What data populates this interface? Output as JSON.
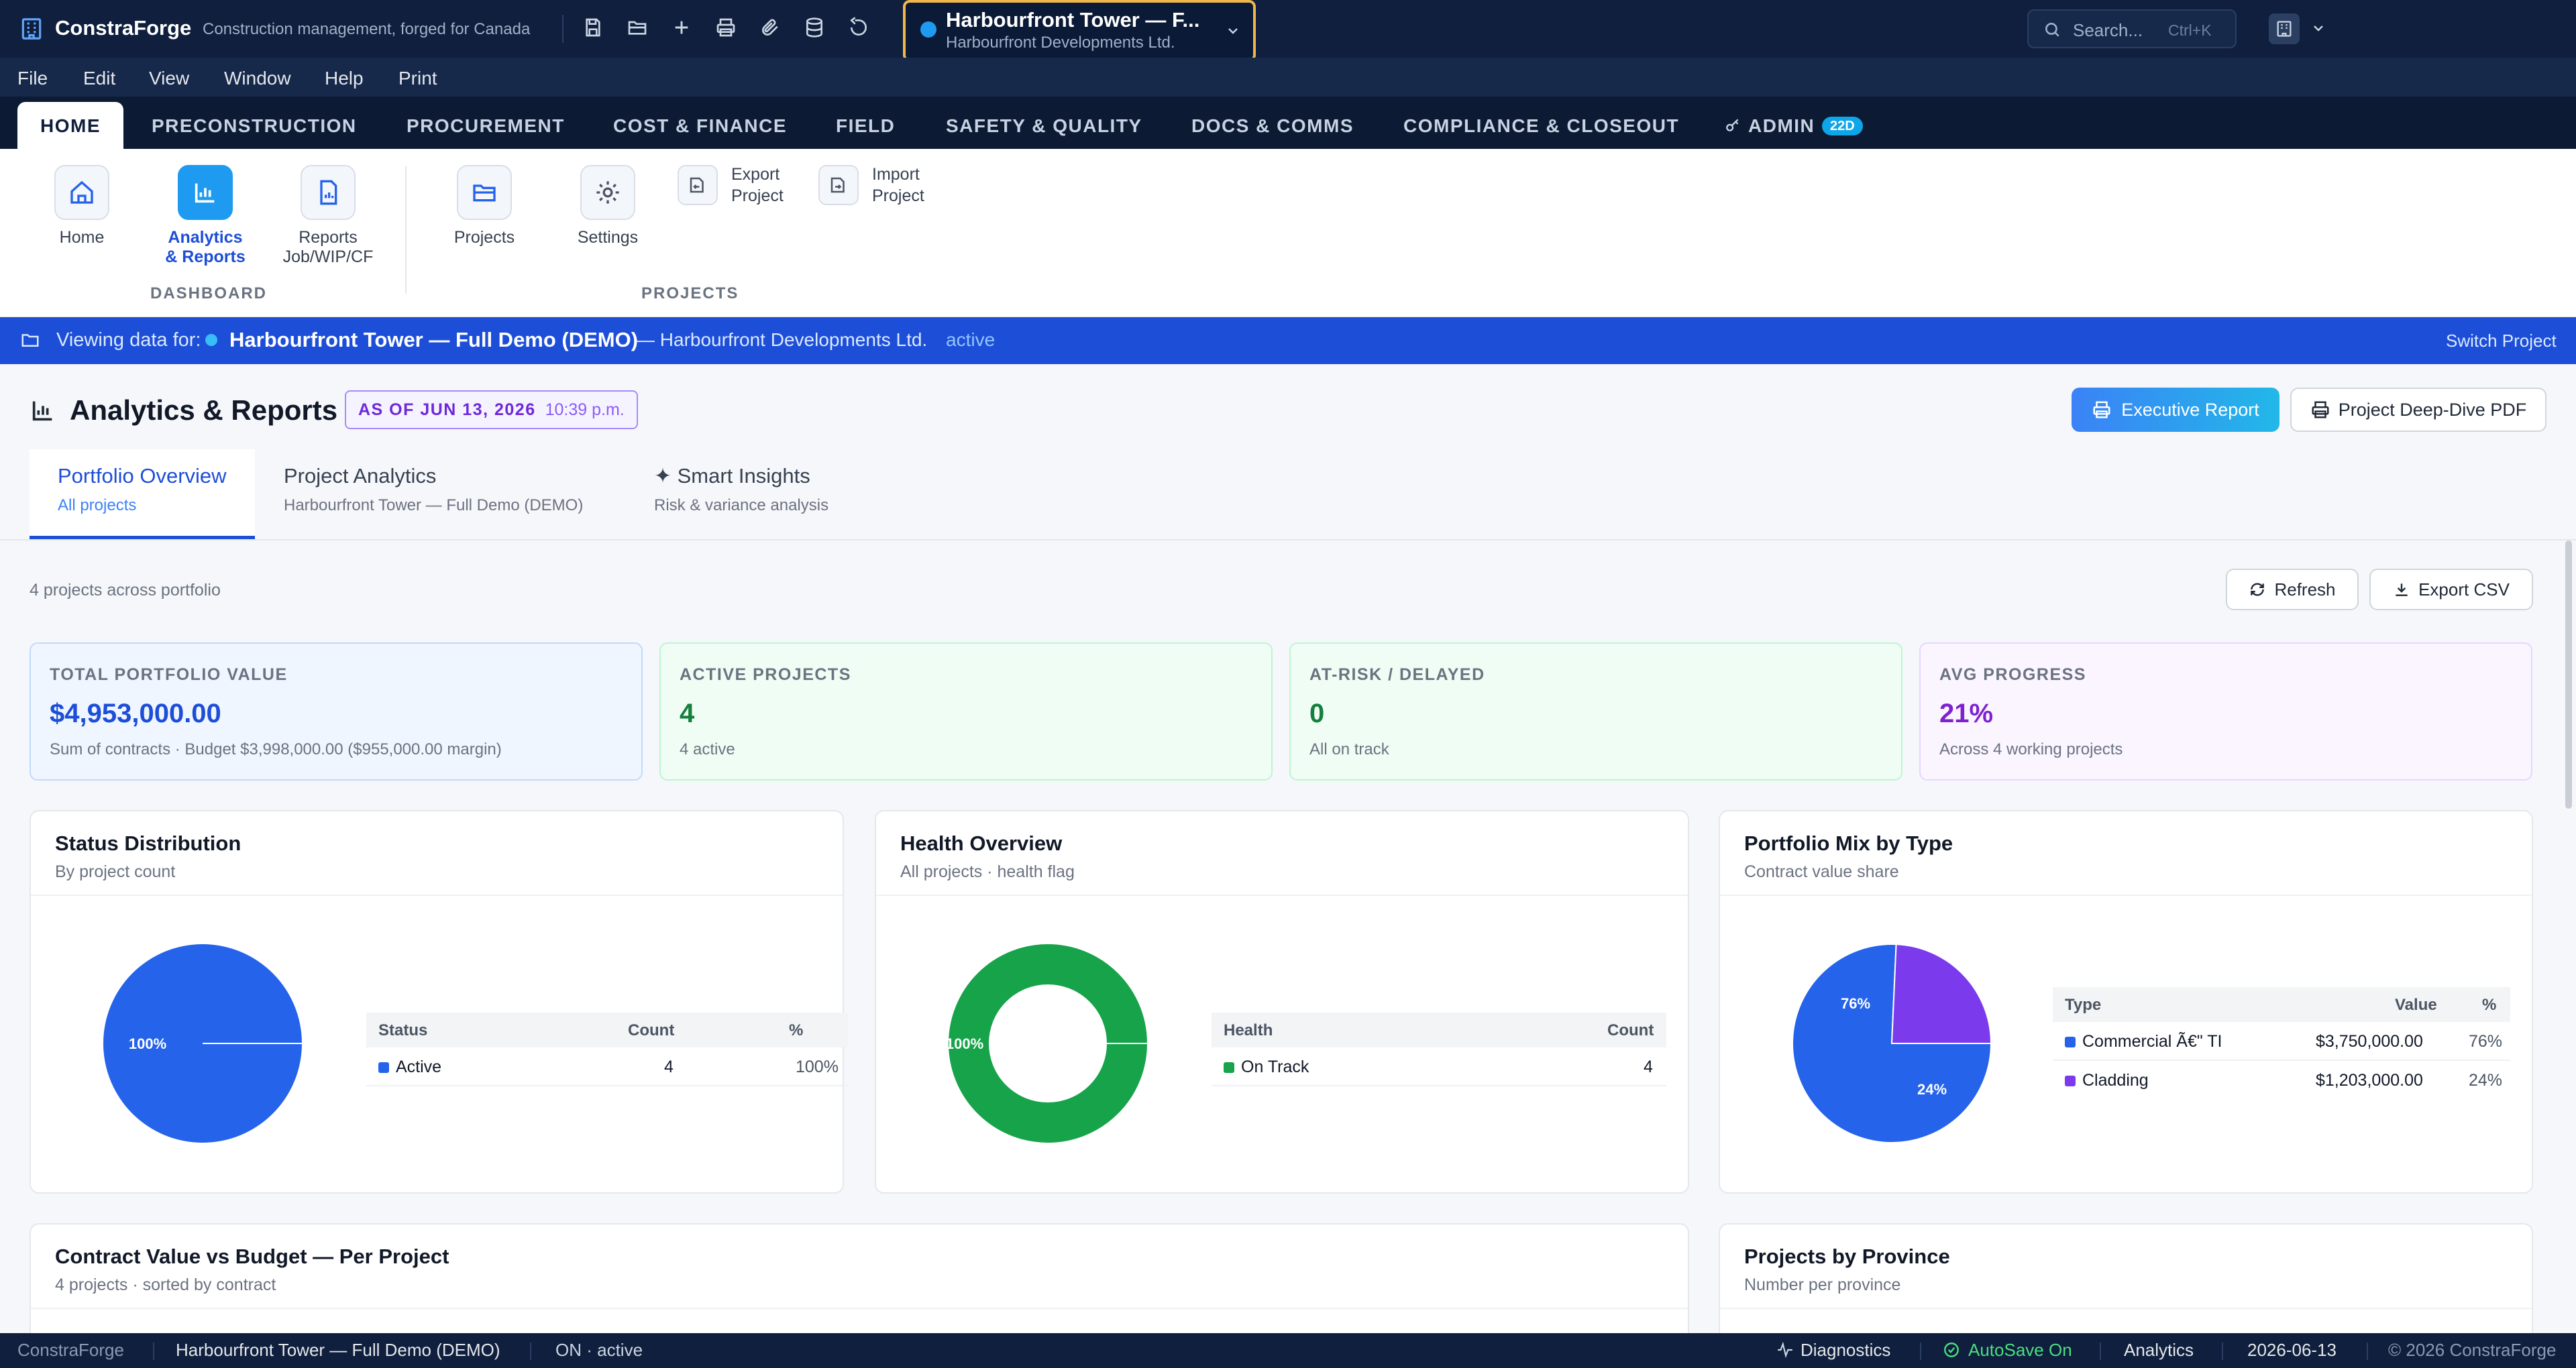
{
  "app": {
    "name": "ConstraForge",
    "tagline": "Construction management, forged for Canada"
  },
  "project_selector": {
    "title": "Harbourfront Tower — F...",
    "subtitle": "Harbourfront Developments Ltd."
  },
  "search": {
    "placeholder": "Search...",
    "shortcut": "Ctrl+K"
  },
  "menu": [
    "File",
    "Edit",
    "View",
    "Window",
    "Help",
    "Print"
  ],
  "tabs": [
    "HOME",
    "PRECONSTRUCTION",
    "PROCUREMENT",
    "COST & FINANCE",
    "FIELD",
    "SAFETY & QUALITY",
    "DOCS & COMMS",
    "COMPLIANCE & CLOSEOUT",
    "ADMIN"
  ],
  "admin_badge": "22D",
  "ribbon": {
    "home": "Home",
    "analytics_1": "Analytics",
    "analytics_2": "& Reports",
    "reports_1": "Reports",
    "reports_2": "Job/WIP/CF",
    "projects": "Projects",
    "settings": "Settings",
    "export_1": "Export",
    "export_2": "Project",
    "import_1": "Import",
    "import_2": "Project",
    "group_dashboard": "DASHBOARD",
    "group_projects": "PROJECTS"
  },
  "viewing": {
    "prefix": "Viewing data for:",
    "project": "Harbourfront Tower — Full Demo (DEMO)",
    "client": "— Harbourfront Developments Ltd.",
    "status": "active",
    "switch": "Switch Project"
  },
  "page": {
    "title": "Analytics & Reports",
    "asof_label": "AS OF JUN 13, 2026",
    "asof_time": "10:39 p.m.",
    "exec_report": "Executive Report",
    "deep_dive": "Project Deep-Dive PDF"
  },
  "subtabs": [
    {
      "label": "Portfolio Overview",
      "sub": "All projects"
    },
    {
      "label": "Project Analytics",
      "sub": "Harbourfront Tower — Full Demo (DEMO)"
    },
    {
      "label": "✦ Smart Insights",
      "sub": "Risk & variance analysis"
    }
  ],
  "portfolio": {
    "count_text": "4 projects across portfolio",
    "refresh": "Refresh",
    "export_csv": "Export CSV"
  },
  "kpis": [
    {
      "label": "TOTAL PORTFOLIO VALUE",
      "value": "$4,953,000.00",
      "sub": "Sum of contracts · Budget $3,998,000.00 ($955,000.00 margin)",
      "color": "#1d4ed8"
    },
    {
      "label": "ACTIVE PROJECTS",
      "value": "4",
      "sub": "4 active",
      "color": "#15803d"
    },
    {
      "label": "AT-RISK / DELAYED",
      "value": "0",
      "sub": "All on track",
      "color": "#15803d"
    },
    {
      "label": "AVG PROGRESS",
      "value": "21%",
      "sub": "Across 4 working projects",
      "color": "#7e22ce"
    }
  ],
  "status_chart": {
    "title": "Status Distribution",
    "subtitle": "By project count",
    "headers": [
      "Status",
      "Count",
      "%"
    ],
    "rows": [
      {
        "name": "Active",
        "count": "4",
        "pct": "100%",
        "color": "#2563eb"
      }
    ],
    "slice_label": "100%"
  },
  "health_chart": {
    "title": "Health Overview",
    "subtitle": "All projects · health flag",
    "headers": [
      "Health",
      "Count"
    ],
    "rows": [
      {
        "name": "On Track",
        "count": "4",
        "color": "#16a34a"
      }
    ],
    "slice_label": "100%"
  },
  "mix_chart": {
    "title": "Portfolio Mix by Type",
    "subtitle": "Contract value share",
    "headers": [
      "Type",
      "Value",
      "%"
    ],
    "rows": [
      {
        "name": "Commercial Ã€\" TI",
        "value": "$3,750,000.00",
        "pct": "76%",
        "color": "#2563eb"
      },
      {
        "name": "Cladding",
        "value": "$1,203,000.00",
        "pct": "24%",
        "color": "#7c3aed"
      }
    ]
  },
  "chart_data": [
    {
      "type": "pie",
      "title": "Status Distribution",
      "categories": [
        "Active"
      ],
      "values": [
        4
      ],
      "labels": [
        "100%"
      ]
    },
    {
      "type": "pie",
      "title": "Health Overview",
      "categories": [
        "On Track"
      ],
      "values": [
        4
      ],
      "labels": [
        "100%"
      ]
    },
    {
      "type": "pie",
      "title": "Portfolio Mix by Type",
      "categories": [
        "Commercial Ã€\" TI",
        "Cladding"
      ],
      "values": [
        3750000,
        1203000
      ],
      "labels": [
        "76%",
        "24%"
      ]
    }
  ],
  "lower": [
    {
      "title": "Contract Value vs Budget — Per Project",
      "subtitle": "4 projects · sorted by contract"
    },
    {
      "title": "Projects by Province",
      "subtitle": "Number per province"
    }
  ],
  "statusbar": {
    "app": "ConstraForge",
    "project": "Harbourfront Tower — Full Demo (DEMO)",
    "state": "ON · active",
    "diagnostics": "Diagnostics",
    "autosave": "AutoSave On",
    "module": "Analytics",
    "date": "2026-06-13",
    "copyright": "© 2026 ConstraForge"
  }
}
